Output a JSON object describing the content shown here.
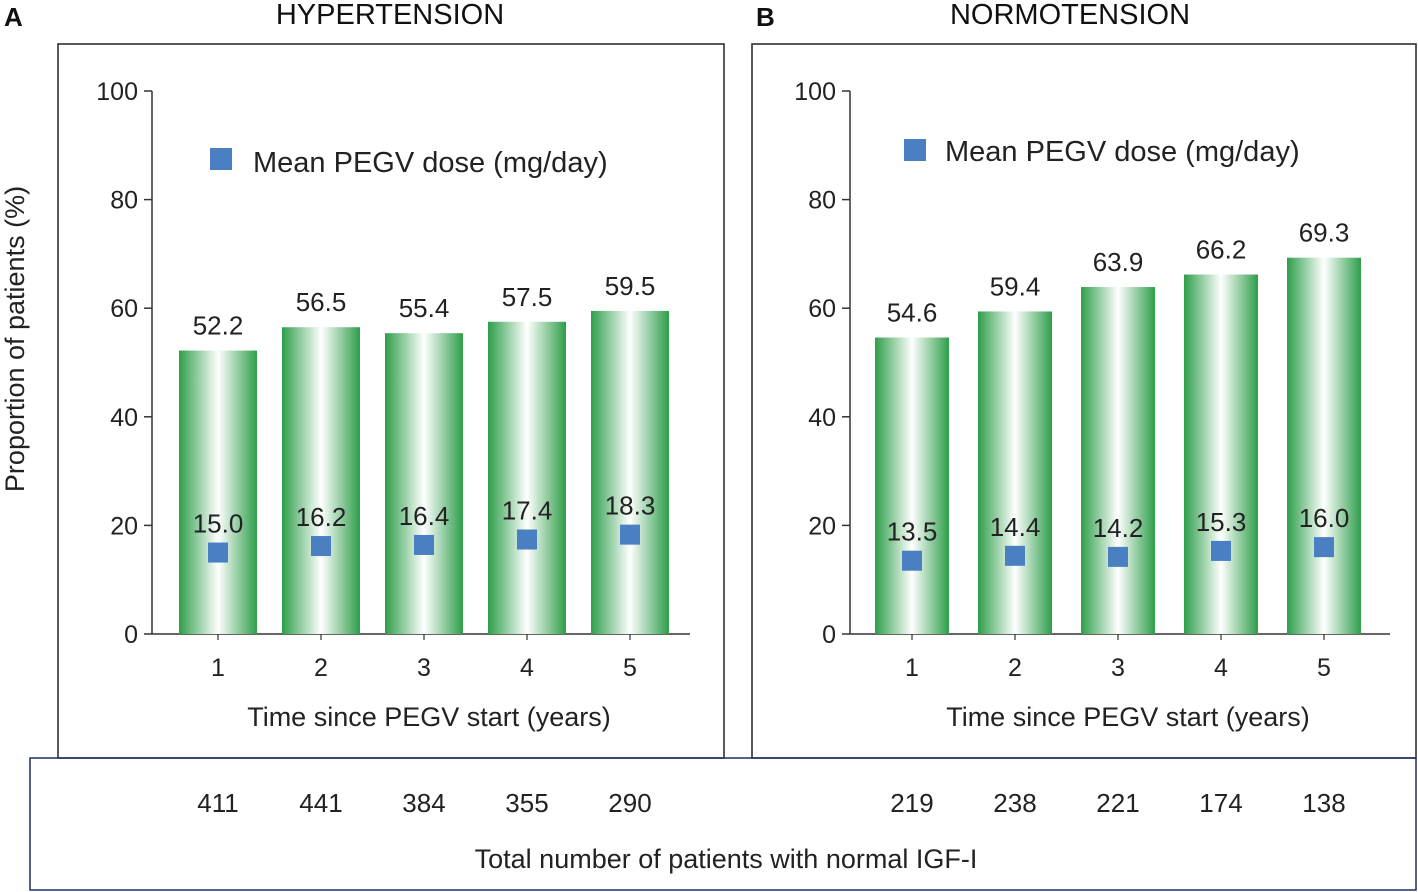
{
  "chart_data": [
    {
      "type": "bar",
      "panel": "A",
      "title": "HYPERTENSION",
      "categories": [
        "1",
        "2",
        "3",
        "4",
        "5"
      ],
      "values": [
        52.2,
        56.5,
        55.4,
        57.5,
        59.5
      ],
      "value_labels": [
        "52.2",
        "56.5",
        "55.4",
        "57.5",
        "59.5"
      ],
      "dose_series": {
        "name": "Mean PEGV dose (mg/day)",
        "values": [
          15.0,
          16.2,
          16.4,
          17.4,
          18.3
        ],
        "labels": [
          "15.0",
          "16.2",
          "16.4",
          "17.4",
          "18.3"
        ],
        "color": "#4a7fc1"
      },
      "patient_counts": [
        "411",
        "441",
        "384",
        "355",
        "290"
      ],
      "xlabel": "Time since PEGV start (years)",
      "ylabel": "Proportion of patients (%)",
      "ylim": [
        0,
        100
      ],
      "yticks": [
        "0",
        "20",
        "40",
        "60",
        "80",
        "100"
      ],
      "bar_color": "#2e9e4a",
      "legend": "top-right"
    },
    {
      "type": "bar",
      "panel": "B",
      "title": "NORMOTENSION",
      "categories": [
        "1",
        "2",
        "3",
        "4",
        "5"
      ],
      "values": [
        54.6,
        59.4,
        63.9,
        66.2,
        69.3
      ],
      "value_labels": [
        "54.6",
        "59.4",
        "63.9",
        "66.2",
        "69.3"
      ],
      "dose_series": {
        "name": "Mean PEGV dose (mg/day)",
        "values": [
          13.5,
          14.4,
          14.2,
          15.3,
          16.0
        ],
        "labels": [
          "13.5",
          "14.4",
          "14.2",
          "15.3",
          "16.0"
        ],
        "color": "#4a7fc1"
      },
      "patient_counts": [
        "219",
        "238",
        "221",
        "174",
        "138"
      ],
      "xlabel": "Time since PEGV start (years)",
      "ylabel": "",
      "ylim": [
        0,
        100
      ],
      "yticks": [
        "0",
        "20",
        "40",
        "60",
        "80",
        "100"
      ],
      "bar_color": "#2e9e4a",
      "legend": "top-right"
    }
  ],
  "footer": {
    "caption": "Total number of patients with normal IGF-I"
  },
  "shared_ylabel": "Proportion of patients (%)"
}
